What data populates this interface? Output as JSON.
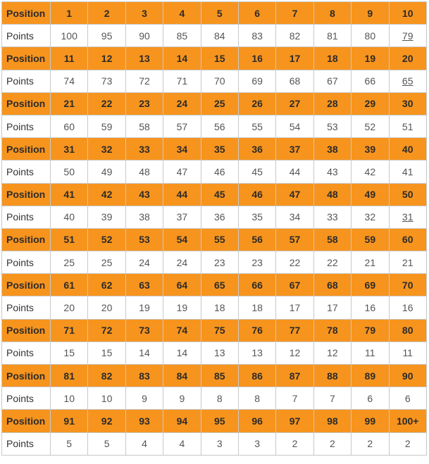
{
  "table": {
    "position_label": "Position",
    "points_label": "Points",
    "blocks": [
      {
        "positions": [
          "1",
          "2",
          "3",
          "4",
          "5",
          "6",
          "7",
          "8",
          "9",
          "10"
        ],
        "points": [
          "100",
          "95",
          "90",
          "85",
          "84",
          "83",
          "82",
          "81",
          "80",
          "79"
        ],
        "underlined_last": true
      },
      {
        "positions": [
          "11",
          "12",
          "13",
          "14",
          "15",
          "16",
          "17",
          "18",
          "19",
          "20"
        ],
        "points": [
          "74",
          "73",
          "72",
          "71",
          "70",
          "69",
          "68",
          "67",
          "66",
          "65"
        ],
        "underlined_last": true
      },
      {
        "positions": [
          "21",
          "22",
          "23",
          "24",
          "25",
          "26",
          "27",
          "28",
          "29",
          "30"
        ],
        "points": [
          "60",
          "59",
          "58",
          "57",
          "56",
          "55",
          "54",
          "53",
          "52",
          "51"
        ],
        "underlined_last": false
      },
      {
        "positions": [
          "31",
          "32",
          "33",
          "34",
          "35",
          "36",
          "37",
          "38",
          "39",
          "40"
        ],
        "points": [
          "50",
          "49",
          "48",
          "47",
          "46",
          "45",
          "44",
          "43",
          "42",
          "41"
        ],
        "underlined_last": false
      },
      {
        "positions": [
          "41",
          "42",
          "43",
          "44",
          "45",
          "46",
          "47",
          "48",
          "49",
          "50"
        ],
        "points": [
          "40",
          "39",
          "38",
          "37",
          "36",
          "35",
          "34",
          "33",
          "32",
          "31"
        ],
        "underlined_last": true
      },
      {
        "positions": [
          "51",
          "52",
          "53",
          "54",
          "55",
          "56",
          "57",
          "58",
          "59",
          "60"
        ],
        "points": [
          "25",
          "25",
          "24",
          "24",
          "23",
          "23",
          "22",
          "22",
          "21",
          "21"
        ],
        "underlined_last": false
      },
      {
        "positions": [
          "61",
          "62",
          "63",
          "64",
          "65",
          "66",
          "67",
          "68",
          "69",
          "70"
        ],
        "points": [
          "20",
          "20",
          "19",
          "19",
          "18",
          "18",
          "17",
          "17",
          "16",
          "16"
        ],
        "underlined_last": false
      },
      {
        "positions": [
          "71",
          "72",
          "73",
          "74",
          "75",
          "76",
          "77",
          "78",
          "79",
          "80"
        ],
        "points": [
          "15",
          "15",
          "14",
          "14",
          "13",
          "13",
          "12",
          "12",
          "11",
          "11"
        ],
        "underlined_last": false
      },
      {
        "positions": [
          "81",
          "82",
          "83",
          "84",
          "85",
          "86",
          "87",
          "88",
          "89",
          "90"
        ],
        "points": [
          "10",
          "10",
          "9",
          "9",
          "8",
          "8",
          "7",
          "7",
          "6",
          "6"
        ],
        "underlined_last": false
      },
      {
        "positions": [
          "91",
          "92",
          "93",
          "94",
          "95",
          "96",
          "97",
          "98",
          "99",
          "100+"
        ],
        "points": [
          "5",
          "5",
          "4",
          "4",
          "3",
          "3",
          "2",
          "2",
          "2",
          "2"
        ],
        "underlined_last": false
      }
    ]
  },
  "colors": {
    "header_orange": "#f7941d",
    "border": "#c8c8c8",
    "text": "#555555"
  }
}
